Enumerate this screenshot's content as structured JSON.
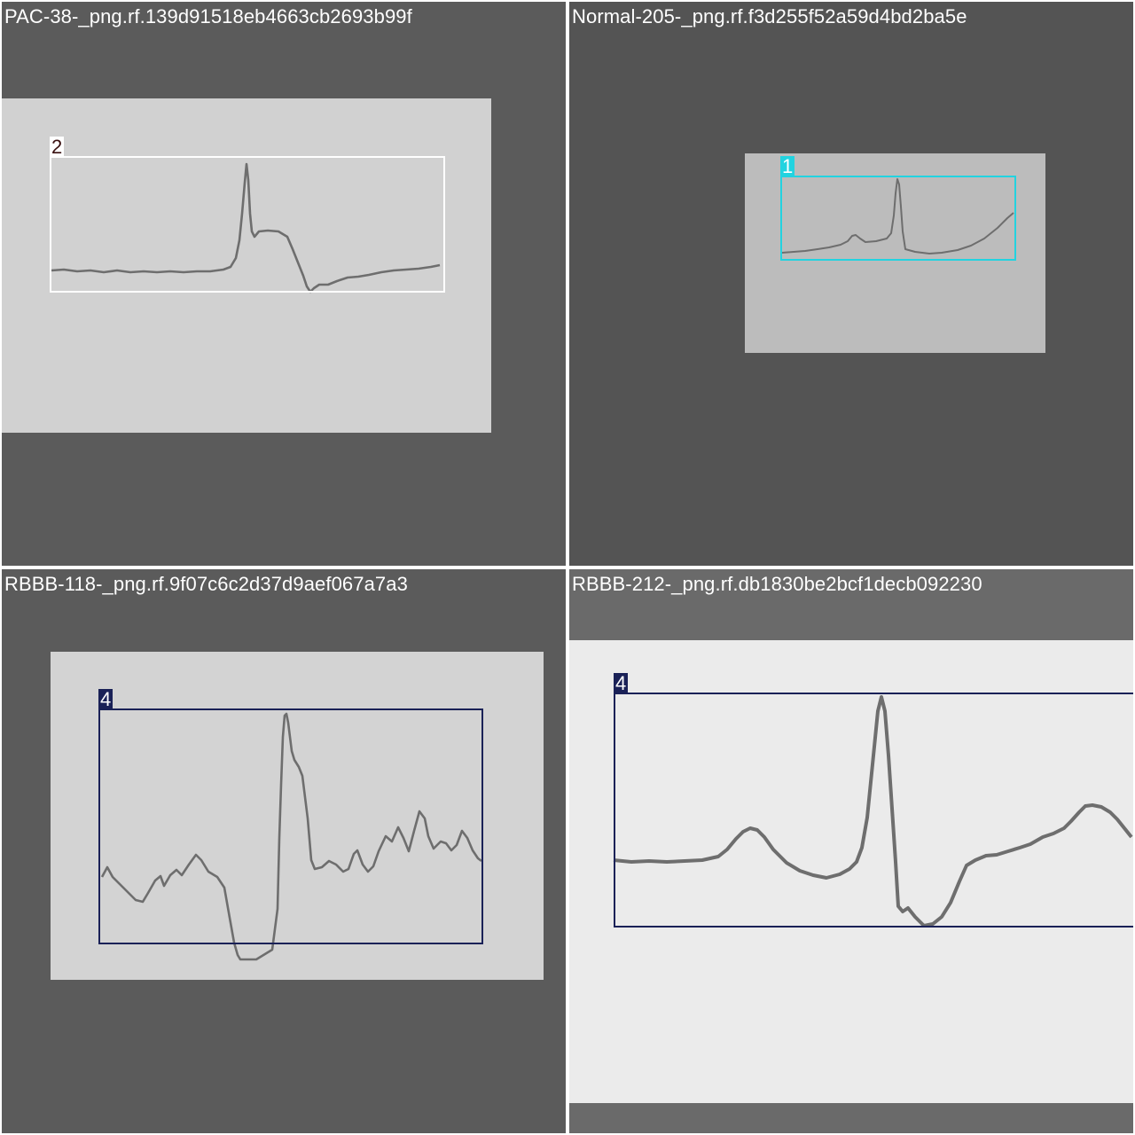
{
  "tiles": [
    {
      "filename": "PAC-38-_png.rf.139d91518eb4663cb2693b99f",
      "image_bg": "#d1d1d1",
      "box": {
        "label": "2",
        "color": "#ffffff",
        "label_text_color": "#3a1010"
      }
    },
    {
      "filename": "Normal-205-_png.rf.f3d255f52a59d4bd2ba5e",
      "image_bg": "#bcbcbc",
      "box": {
        "label": "1",
        "color": "#22d3e0",
        "label_text_color": "#ffffff"
      }
    },
    {
      "filename": "RBBB-118-_png.rf.9f07c6c2d37d9aef067a7a3",
      "image_bg": "#d3d3d3",
      "box": {
        "label": "4",
        "color": "#1a2157",
        "label_text_color": "#ffffff"
      }
    },
    {
      "filename": "RBBB-212-_png.rf.db1830be2bcf1decb092230",
      "image_bg": "#ebebeb",
      "box": {
        "label": "4",
        "color": "#1a2157",
        "label_text_color": "#ffffff"
      }
    }
  ],
  "trace_color": "#6e6e6e"
}
